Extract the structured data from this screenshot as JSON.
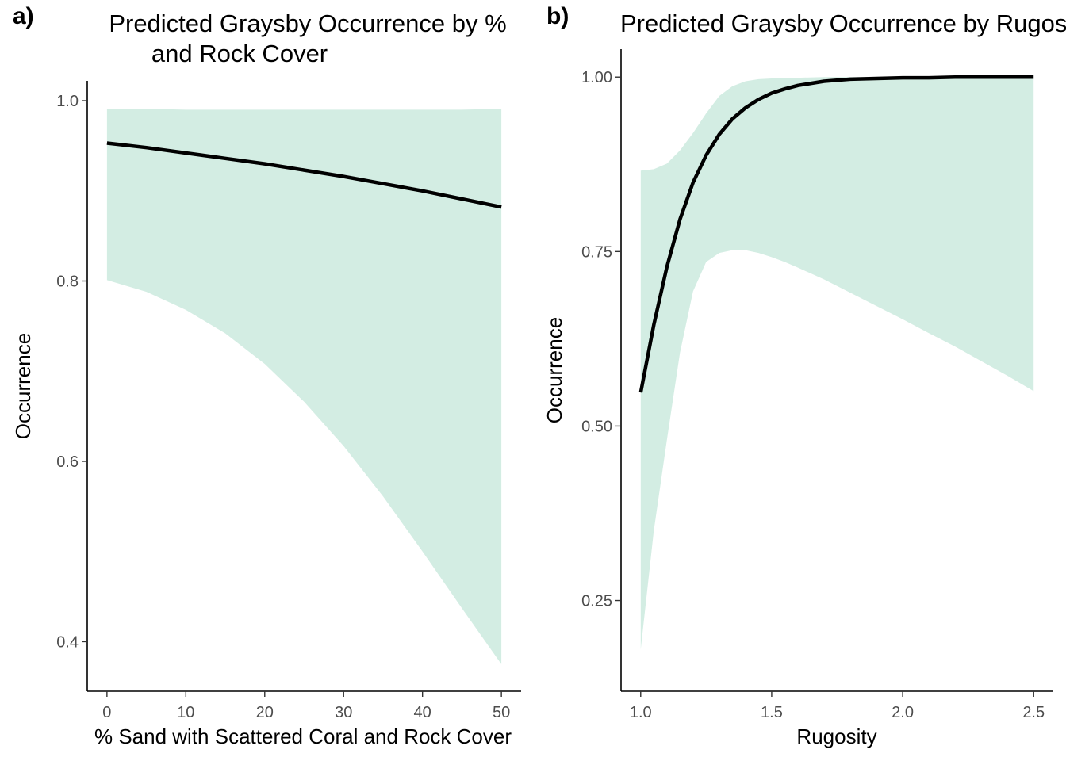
{
  "chart_data": [
    {
      "panel_label": "a)",
      "type": "line",
      "title_lines": [
        "Predicted Graysby Occurrence by %",
        "and Rock Cover"
      ],
      "xlabel": "% Sand with Scattered Coral and Rock Cover",
      "ylabel": "Occurrence",
      "xlim": [
        -2.5,
        52.5
      ],
      "ylim": [
        0.345,
        1.022
      ],
      "x_ticks": [
        0,
        10,
        20,
        30,
        40,
        50
      ],
      "x_tick_labels": [
        "0",
        "10",
        "20",
        "30",
        "40",
        "50"
      ],
      "y_ticks": [
        0.4,
        0.6,
        0.8,
        1.0
      ],
      "y_tick_labels": [
        "0.4",
        "0.6",
        "0.8",
        "1.0"
      ],
      "grid": false,
      "series": [
        {
          "x": [
            0,
            5,
            10,
            15,
            20,
            25,
            30,
            35,
            40,
            45,
            50
          ],
          "fit": [
            0.953,
            0.948,
            0.942,
            0.936,
            0.93,
            0.923,
            0.916,
            0.908,
            0.9,
            0.891,
            0.882
          ],
          "lower": [
            0.801,
            0.788,
            0.768,
            0.742,
            0.708,
            0.666,
            0.617,
            0.561,
            0.5,
            0.437,
            0.375
          ],
          "upper": [
            0.991,
            0.991,
            0.99,
            0.99,
            0.99,
            0.99,
            0.99,
            0.99,
            0.99,
            0.99,
            0.991
          ]
        }
      ]
    },
    {
      "panel_label": "b)",
      "type": "line",
      "title_lines": [
        "Predicted Graysby Occurrence by Rugosity"
      ],
      "xlabel": "Rugosity",
      "ylabel": "Occurrence",
      "xlim": [
        0.925,
        2.575
      ],
      "ylim": [
        0.12,
        1.04
      ],
      "x_ticks": [
        1.0,
        1.5,
        2.0,
        2.5
      ],
      "x_tick_labels": [
        "1.0",
        "1.5",
        "2.0",
        "2.5"
      ],
      "y_ticks": [
        0.25,
        0.5,
        0.75,
        1.0
      ],
      "y_tick_labels": [
        "0.25",
        "0.50",
        "0.75",
        "1.00"
      ],
      "grid": false,
      "series": [
        {
          "x": [
            1.0,
            1.05,
            1.1,
            1.15,
            1.2,
            1.25,
            1.3,
            1.35,
            1.4,
            1.45,
            1.5,
            1.55,
            1.6,
            1.7,
            1.8,
            1.9,
            2.0,
            2.1,
            2.2,
            2.3,
            2.4,
            2.5
          ],
          "fit": [
            0.548,
            0.645,
            0.728,
            0.796,
            0.849,
            0.888,
            0.918,
            0.94,
            0.956,
            0.968,
            0.977,
            0.983,
            0.988,
            0.994,
            0.997,
            0.998,
            0.999,
            0.999,
            1.0,
            1.0,
            1.0,
            1.0
          ],
          "lower": [
            0.18,
            0.35,
            0.48,
            0.605,
            0.693,
            0.735,
            0.748,
            0.752,
            0.752,
            0.748,
            0.742,
            0.735,
            0.727,
            0.71,
            0.691,
            0.672,
            0.653,
            0.633,
            0.614,
            0.593,
            0.572,
            0.55
          ],
          "upper": [
            0.866,
            0.868,
            0.876,
            0.895,
            0.92,
            0.948,
            0.973,
            0.987,
            0.994,
            0.997,
            0.998,
            0.999,
            0.999,
            1.0,
            1.0,
            1.0,
            1.0,
            1.0,
            1.0,
            1.0,
            1.0,
            1.0
          ]
        }
      ]
    }
  ]
}
